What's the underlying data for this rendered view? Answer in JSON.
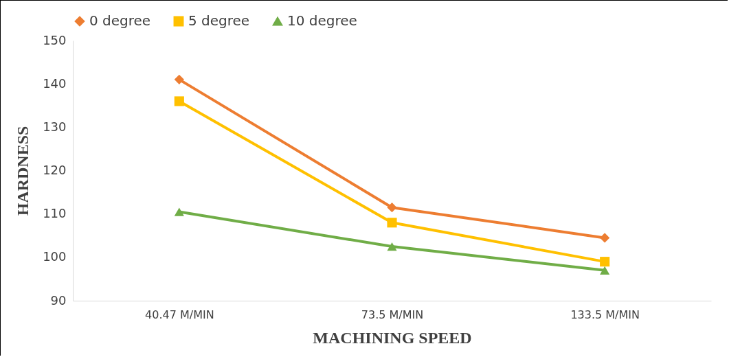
{
  "chart_data": {
    "type": "line",
    "xlabel": "MACHINING SPEED",
    "ylabel": "HARDNESS",
    "categories": [
      "40.47  M/MIN",
      "73.5  M/MIN",
      "133.5  M/MIN"
    ],
    "series": [
      {
        "name": "0 degree",
        "color": "#ed7d31",
        "marker": "diamond",
        "values": [
          141,
          111.5,
          104.5
        ]
      },
      {
        "name": "5 degree",
        "color": "#ffc000",
        "marker": "square",
        "values": [
          136,
          108,
          99
        ]
      },
      {
        "name": "10 degree",
        "color": "#70ad47",
        "marker": "triangle",
        "values": [
          110.5,
          102.5,
          97
        ]
      }
    ],
    "ylim": [
      90,
      150
    ],
    "yticks": [
      90,
      100,
      110,
      120,
      130,
      140,
      150
    ],
    "grid": false,
    "legend": "top"
  }
}
